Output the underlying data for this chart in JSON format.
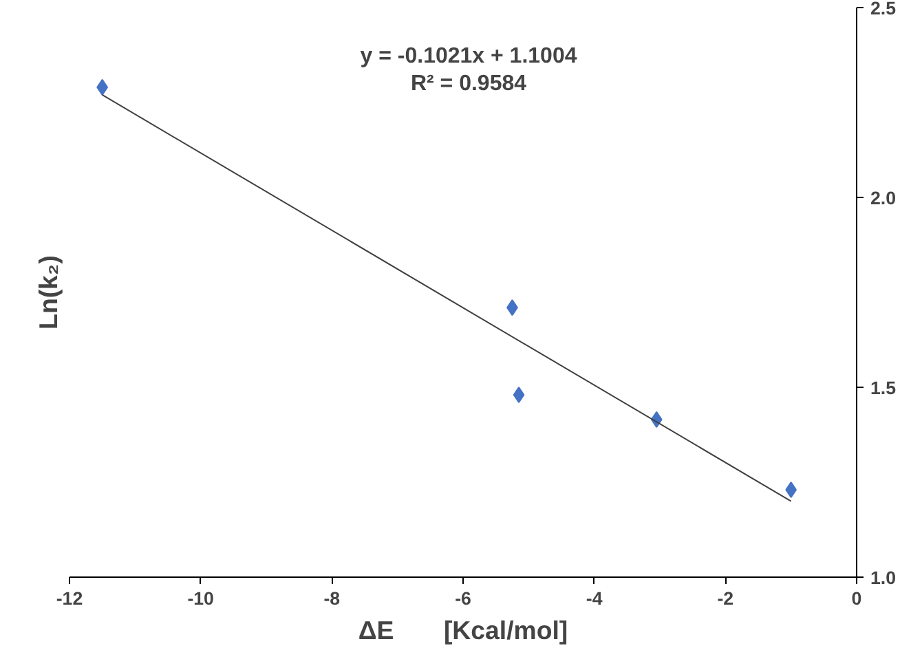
{
  "chart_data": {
    "type": "scatter",
    "xlabel": "ΔE       [Kcal/mol]",
    "ylabel": "Ln(k₂)",
    "annotations": [
      "y = -0.1021x + 1.1004\nR² = 0.9584"
    ],
    "xlim": [
      -12,
      0
    ],
    "xticks": [
      -12,
      -10,
      -8,
      -6,
      -4,
      -2,
      0
    ],
    "ylim": [
      1.0,
      2.5
    ],
    "yticks": [
      {
        "value": 1.0,
        "label": "1.0"
      },
      {
        "value": 1.5,
        "label": "1.5"
      },
      {
        "value": 2.0,
        "label": "2.0"
      },
      {
        "value": 2.5,
        "label": "2.5"
      }
    ],
    "grid": false,
    "series": [
      {
        "color": "#4472c4",
        "marker": "diamond",
        "x": [
          -11.5,
          -5.25,
          -5.15,
          -3.05,
          -1.0
        ],
        "values": [
          2.29,
          1.71,
          1.48,
          1.415,
          1.23
        ]
      },
      {
        "type": "line",
        "color": "#404040",
        "x": [
          -11.5,
          -1.0
        ],
        "values": [
          2.27,
          1.2
        ]
      }
    ]
  }
}
